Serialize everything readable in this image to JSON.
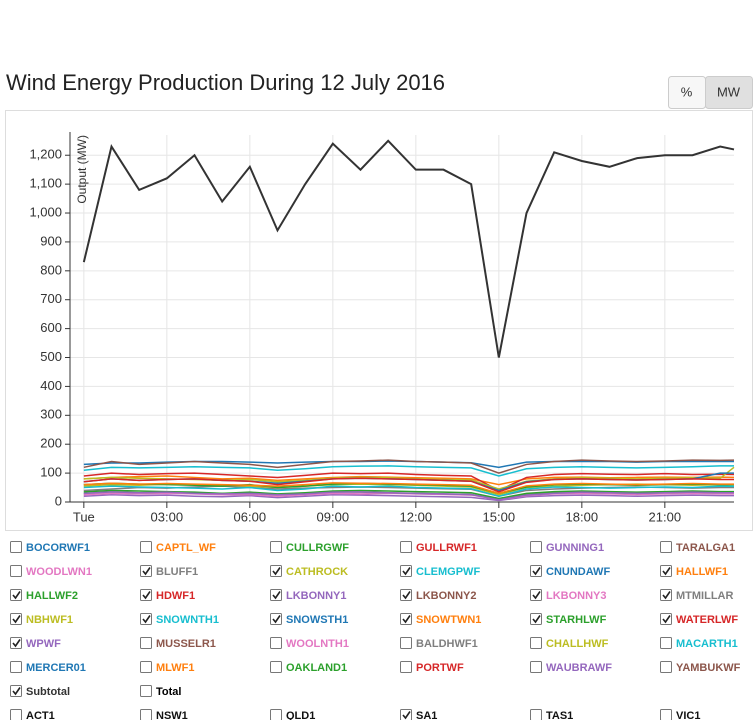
{
  "chart_data": {
    "type": "line",
    "title": "Wind Energy Production During 12 July 2016",
    "y_label": "Output (MW)",
    "x": [
      0,
      1,
      2,
      3,
      4,
      5,
      6,
      7,
      8,
      9,
      10,
      11,
      12,
      13,
      14,
      15,
      16,
      17,
      18,
      19,
      20,
      21,
      22,
      23,
      23.5
    ],
    "xlim": [
      -0.5,
      23.5
    ],
    "xticks": [
      {
        "value": 0,
        "label": "Tue"
      },
      {
        "value": 3,
        "label": "03:00"
      },
      {
        "value": 6,
        "label": "06:00"
      },
      {
        "value": 9,
        "label": "09:00"
      },
      {
        "value": 12,
        "label": "12:00"
      },
      {
        "value": 15,
        "label": "15:00"
      },
      {
        "value": 18,
        "label": "18:00"
      },
      {
        "value": 21,
        "label": "21:00"
      }
    ],
    "ylim": [
      0,
      1270
    ],
    "yticks": [
      0,
      100,
      200,
      300,
      400,
      500,
      600,
      700,
      800,
      900,
      {
        "value": 1000,
        "label": "1,000"
      },
      {
        "value": 1100,
        "label": "1,100"
      },
      {
        "value": 1200,
        "label": "1,200"
      }
    ],
    "grid": true,
    "series": [
      {
        "name": "BOCORWF1",
        "color": "#1f77b4",
        "checked": false
      },
      {
        "name": "CAPTL_WF",
        "color": "#ff7f0e",
        "checked": false
      },
      {
        "name": "CULLRGWF",
        "color": "#2ca02c",
        "checked": false
      },
      {
        "name": "GULLRWF1",
        "color": "#d62728",
        "checked": false
      },
      {
        "name": "GUNNING1",
        "color": "#9467bd",
        "checked": false
      },
      {
        "name": "TARALGA1",
        "color": "#8c564b",
        "checked": false
      },
      {
        "name": "WOODLWN1",
        "color": "#e377c2",
        "checked": false
      },
      {
        "name": "BLUFF1",
        "color": "#7f7f7f",
        "checked": true,
        "values": [
          40,
          45,
          50,
          48,
          52,
          55,
          50,
          45,
          48,
          50,
          52,
          50,
          48,
          46,
          44,
          20,
          40,
          45,
          48,
          50,
          52,
          50,
          48,
          50,
          50
        ]
      },
      {
        "name": "CATHROCK",
        "color": "#bcbd22",
        "checked": true,
        "values": [
          55,
          60,
          58,
          62,
          60,
          58,
          55,
          50,
          55,
          60,
          62,
          60,
          58,
          55,
          52,
          25,
          50,
          55,
          58,
          60,
          62,
          60,
          58,
          60,
          60
        ]
      },
      {
        "name": "CLEMGPWF",
        "color": "#17becf",
        "checked": true,
        "values": [
          50,
          55,
          52,
          50,
          48,
          45,
          50,
          40,
          45,
          55,
          52,
          55,
          50,
          48,
          46,
          20,
          45,
          52,
          50,
          48,
          50,
          52,
          50,
          55,
          54
        ]
      },
      {
        "name": "CNUNDAWF",
        "color": "#1f77b4",
        "checked": true,
        "values": [
          130,
          135,
          135,
          138,
          140,
          140,
          138,
          135,
          138,
          140,
          140,
          142,
          140,
          138,
          136,
          120,
          138,
          140,
          140,
          140,
          138,
          140,
          140,
          140,
          140
        ]
      },
      {
        "name": "HALLWF1",
        "color": "#ff7f0e",
        "checked": true,
        "values": [
          80,
          85,
          88,
          90,
          85,
          80,
          82,
          75,
          80,
          85,
          88,
          86,
          84,
          82,
          80,
          60,
          80,
          85,
          86,
          84,
          85,
          86,
          85,
          86,
          85
        ]
      },
      {
        "name": "HALLWF2",
        "color": "#2ca02c",
        "checked": true,
        "values": [
          60,
          65,
          62,
          60,
          58,
          55,
          60,
          50,
          55,
          62,
          65,
          62,
          60,
          58,
          55,
          30,
          52,
          60,
          62,
          60,
          58,
          60,
          62,
          60,
          60
        ]
      },
      {
        "name": "HDWF1",
        "color": "#d62728",
        "checked": true,
        "values": [
          90,
          100,
          95,
          98,
          100,
          95,
          90,
          85,
          92,
          100,
          98,
          100,
          95,
          92,
          90,
          40,
          85,
          95,
          98,
          96,
          95,
          98,
          95,
          96,
          95
        ]
      },
      {
        "name": "LKBONNY1",
        "color": "#9467bd",
        "checked": true,
        "values": [
          20,
          25,
          22,
          24,
          20,
          18,
          22,
          15,
          20,
          25,
          24,
          22,
          20,
          18,
          16,
          5,
          18,
          22,
          24,
          22,
          20,
          22,
          24,
          22,
          22
        ]
      },
      {
        "name": "LKBONNY2",
        "color": "#8c564b",
        "checked": true,
        "values": [
          120,
          140,
          130,
          135,
          140,
          135,
          130,
          120,
          130,
          140,
          142,
          145,
          140,
          138,
          135,
          100,
          130,
          140,
          145,
          142,
          140,
          142,
          145,
          144,
          145
        ]
      },
      {
        "name": "LKBONNY3",
        "color": "#e377c2",
        "checked": true,
        "values": [
          25,
          30,
          28,
          30,
          28,
          25,
          26,
          20,
          25,
          30,
          28,
          30,
          28,
          26,
          24,
          8,
          22,
          28,
          30,
          28,
          26,
          28,
          30,
          28,
          28
        ]
      },
      {
        "name": "MTMILLAR",
        "color": "#7f7f7f",
        "checked": true,
        "values": [
          30,
          35,
          32,
          34,
          32,
          30,
          30,
          25,
          30,
          35,
          34,
          32,
          30,
          28,
          26,
          10,
          26,
          32,
          34,
          32,
          30,
          32,
          34,
          32,
          32
        ]
      },
      {
        "name": "NBHWF1",
        "color": "#bcbd22",
        "checked": true,
        "values": [
          80,
          85,
          82,
          80,
          78,
          75,
          78,
          70,
          75,
          82,
          85,
          84,
          80,
          78,
          76,
          45,
          72,
          80,
          84,
          82,
          80,
          82,
          84,
          82,
          120
        ]
      },
      {
        "name": "SNOWNTH1",
        "color": "#17becf",
        "checked": true,
        "values": [
          110,
          120,
          118,
          120,
          122,
          120,
          118,
          110,
          115,
          122,
          124,
          125,
          122,
          120,
          118,
          90,
          115,
          120,
          122,
          120,
          118,
          120,
          122,
          125,
          125
        ]
      },
      {
        "name": "SNOWSTH1",
        "color": "#1f77b4",
        "checked": true,
        "values": [
          70,
          80,
          75,
          78,
          80,
          75,
          72,
          65,
          72,
          80,
          82,
          80,
          78,
          75,
          72,
          40,
          70,
          78,
          80,
          78,
          76,
          78,
          80,
          100,
          100
        ]
      },
      {
        "name": "SNOWTWN1",
        "color": "#ff7f0e",
        "checked": true,
        "values": [
          60,
          65,
          62,
          64,
          62,
          60,
          58,
          55,
          60,
          66,
          65,
          64,
          62,
          60,
          58,
          30,
          56,
          62,
          64,
          62,
          60,
          62,
          64,
          62,
          62
        ]
      },
      {
        "name": "STARHLWF",
        "color": "#2ca02c",
        "checked": true,
        "values": [
          35,
          40,
          38,
          36,
          34,
          30,
          34,
          28,
          32,
          38,
          40,
          38,
          36,
          34,
          32,
          12,
          30,
          36,
          38,
          36,
          34,
          36,
          38,
          36,
          36
        ]
      },
      {
        "name": "WATERLWF",
        "color": "#d62728",
        "checked": true,
        "values": [
          70,
          80,
          75,
          78,
          80,
          75,
          72,
          60,
          70,
          80,
          82,
          80,
          78,
          75,
          72,
          35,
          68,
          78,
          80,
          78,
          76,
          78,
          80,
          78,
          78
        ]
      },
      {
        "name": "WPWF",
        "color": "#9467bd",
        "checked": true,
        "values": [
          30,
          35,
          32,
          34,
          30,
          28,
          30,
          25,
          28,
          34,
          35,
          32,
          30,
          28,
          26,
          8,
          24,
          30,
          34,
          32,
          30,
          32,
          34,
          32,
          32
        ]
      },
      {
        "name": "MUSSELR1",
        "color": "#8c564b",
        "checked": false
      },
      {
        "name": "WOOLNTH1",
        "color": "#e377c2",
        "checked": false
      },
      {
        "name": "BALDHWF1",
        "color": "#7f7f7f",
        "checked": false
      },
      {
        "name": "CHALLHWF",
        "color": "#bcbd22",
        "checked": false
      },
      {
        "name": "MACARTH1",
        "color": "#17becf",
        "checked": false
      },
      {
        "name": "MERCER01",
        "color": "#1f77b4",
        "checked": false
      },
      {
        "name": "MLWF1",
        "color": "#ff7f0e",
        "checked": false
      },
      {
        "name": "OAKLAND1",
        "color": "#2ca02c",
        "checked": false
      },
      {
        "name": "PORTWF",
        "color": "#d62728",
        "checked": false
      },
      {
        "name": "WAUBRAWF",
        "color": "#9467bd",
        "checked": false
      },
      {
        "name": "YAMBUKWF",
        "color": "#8c564b",
        "checked": false
      },
      {
        "name": "Subtotal",
        "color": "#333333",
        "checked": true,
        "values": [
          830,
          1230,
          1080,
          1120,
          1200,
          1040,
          1160,
          940,
          1100,
          1240,
          1150,
          1250,
          1150,
          1150,
          1100,
          500,
          1000,
          1210,
          1180,
          1160,
          1190,
          1200,
          1200,
          1230,
          1220
        ]
      },
      {
        "name": "Total",
        "color": "#000000",
        "checked": false
      }
    ],
    "regions": [
      {
        "name": "ACT1",
        "checked": false
      },
      {
        "name": "NSW1",
        "checked": false
      },
      {
        "name": "QLD1",
        "checked": false
      },
      {
        "name": "SA1",
        "checked": true
      },
      {
        "name": "TAS1",
        "checked": false
      },
      {
        "name": "VIC1",
        "checked": false
      }
    ]
  },
  "controls": {
    "buttons": [
      "%",
      "MW"
    ],
    "active": 1
  }
}
